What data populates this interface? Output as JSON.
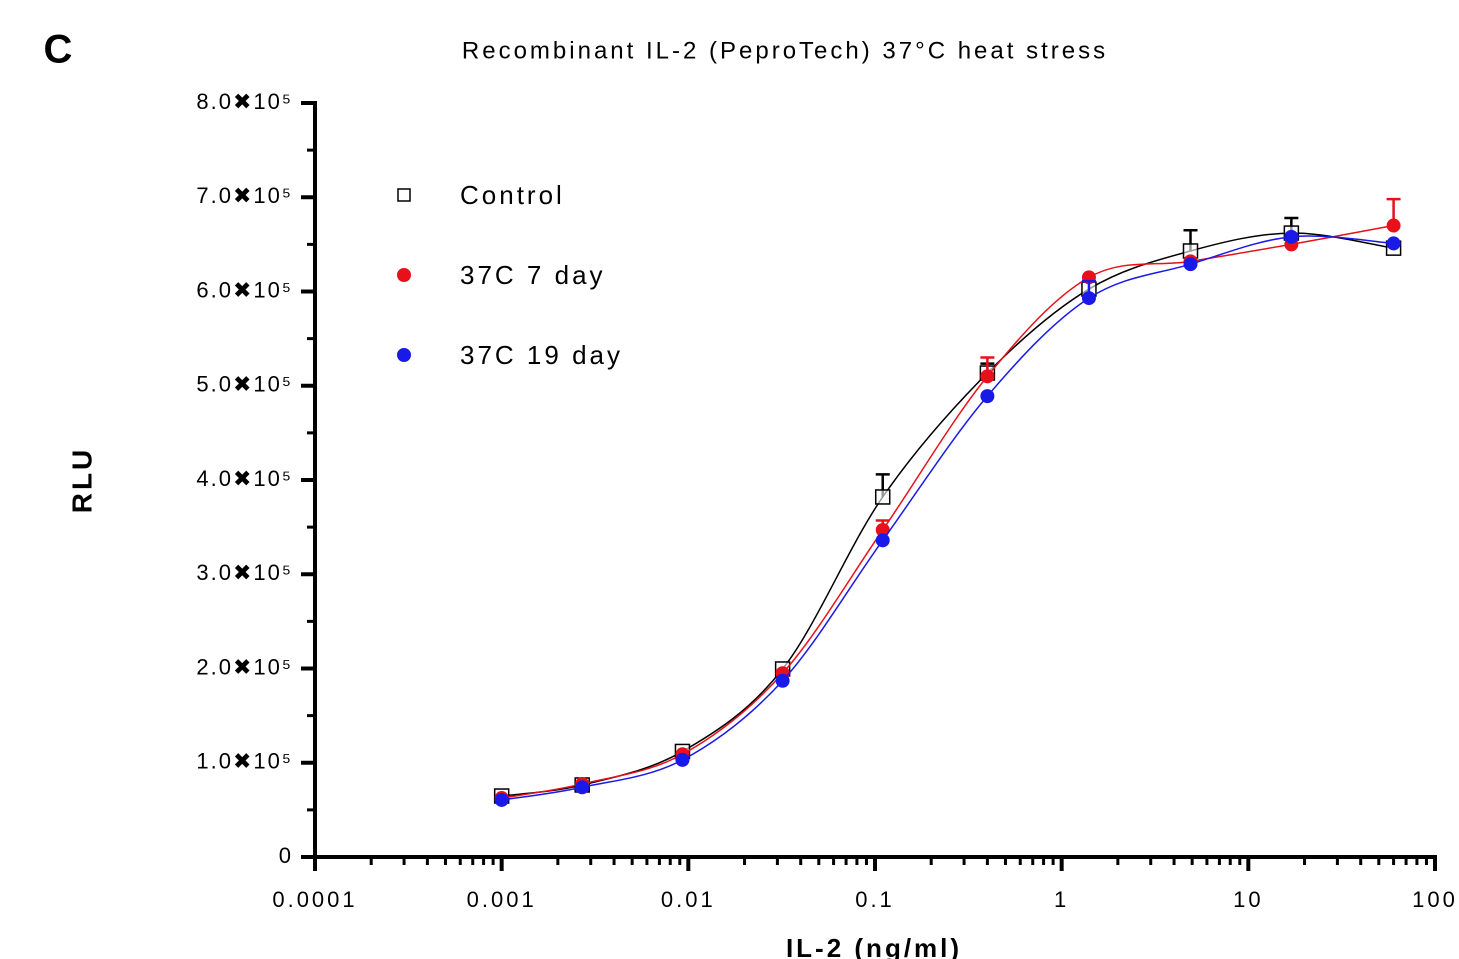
{
  "chart_data": {
    "type": "scatter",
    "panel_label": "C",
    "title": "Recombinant IL-2 (PeproTech) 37°C heat stress",
    "x_label": "IL-2 (ng/ml)",
    "y_label": "RLU",
    "x_scale": "log",
    "xlim": [
      0.0001,
      100
    ],
    "xticks": [
      0.0001,
      0.001,
      0.01,
      0.1,
      1,
      10,
      100
    ],
    "ylim": [
      0,
      800000
    ],
    "yticks": [
      0,
      {
        "value": 100000,
        "label": "1.0✖10⁵"
      },
      {
        "value": 200000,
        "label": "2.0✖10⁵"
      },
      {
        "value": 300000,
        "label": "3.0✖10⁵"
      },
      {
        "value": 400000,
        "label": "4.0✖10⁵"
      },
      {
        "value": 500000,
        "label": "5.0✖10⁵"
      },
      {
        "value": 600000,
        "label": "6.0✖10⁵"
      },
      {
        "value": 700000,
        "label": "7.0✖10⁵"
      },
      {
        "value": 800000,
        "label": "8.0✖10⁵"
      }
    ],
    "legend": "upper left",
    "x": [
      0.001,
      0.0027,
      0.0093,
      0.032,
      0.11,
      0.4,
      1.4,
      4.9,
      17,
      60
    ],
    "series": [
      {
        "name": "Control",
        "color": "#000000",
        "marker": "open-square",
        "values": [
          64700,
          76400,
          112000,
          199500,
          382000,
          513500,
          602600,
          643000,
          662000,
          646000
        ],
        "errors": [
          null,
          null,
          null,
          null,
          24000,
          10000,
          null,
          22000,
          16000,
          null
        ]
      },
      {
        "name": "37C 7 day",
        "color": "#e8101a",
        "marker": "circle",
        "values": [
          62600,
          77500,
          109000,
          195000,
          347000,
          510000,
          615000,
          632000,
          650000,
          670000
        ],
        "errors": [
          null,
          null,
          null,
          null,
          10000,
          20000,
          null,
          null,
          null,
          28000
        ]
      },
      {
        "name": "37C 19 day",
        "color": "#1a1ae8",
        "marker": "circle",
        "values": [
          60500,
          74000,
          103000,
          187000,
          336000,
          489000,
          593000,
          629000,
          658000,
          651000
        ],
        "errors": [
          null,
          null,
          null,
          null,
          null,
          null,
          18000,
          null,
          null,
          null
        ]
      }
    ]
  }
}
